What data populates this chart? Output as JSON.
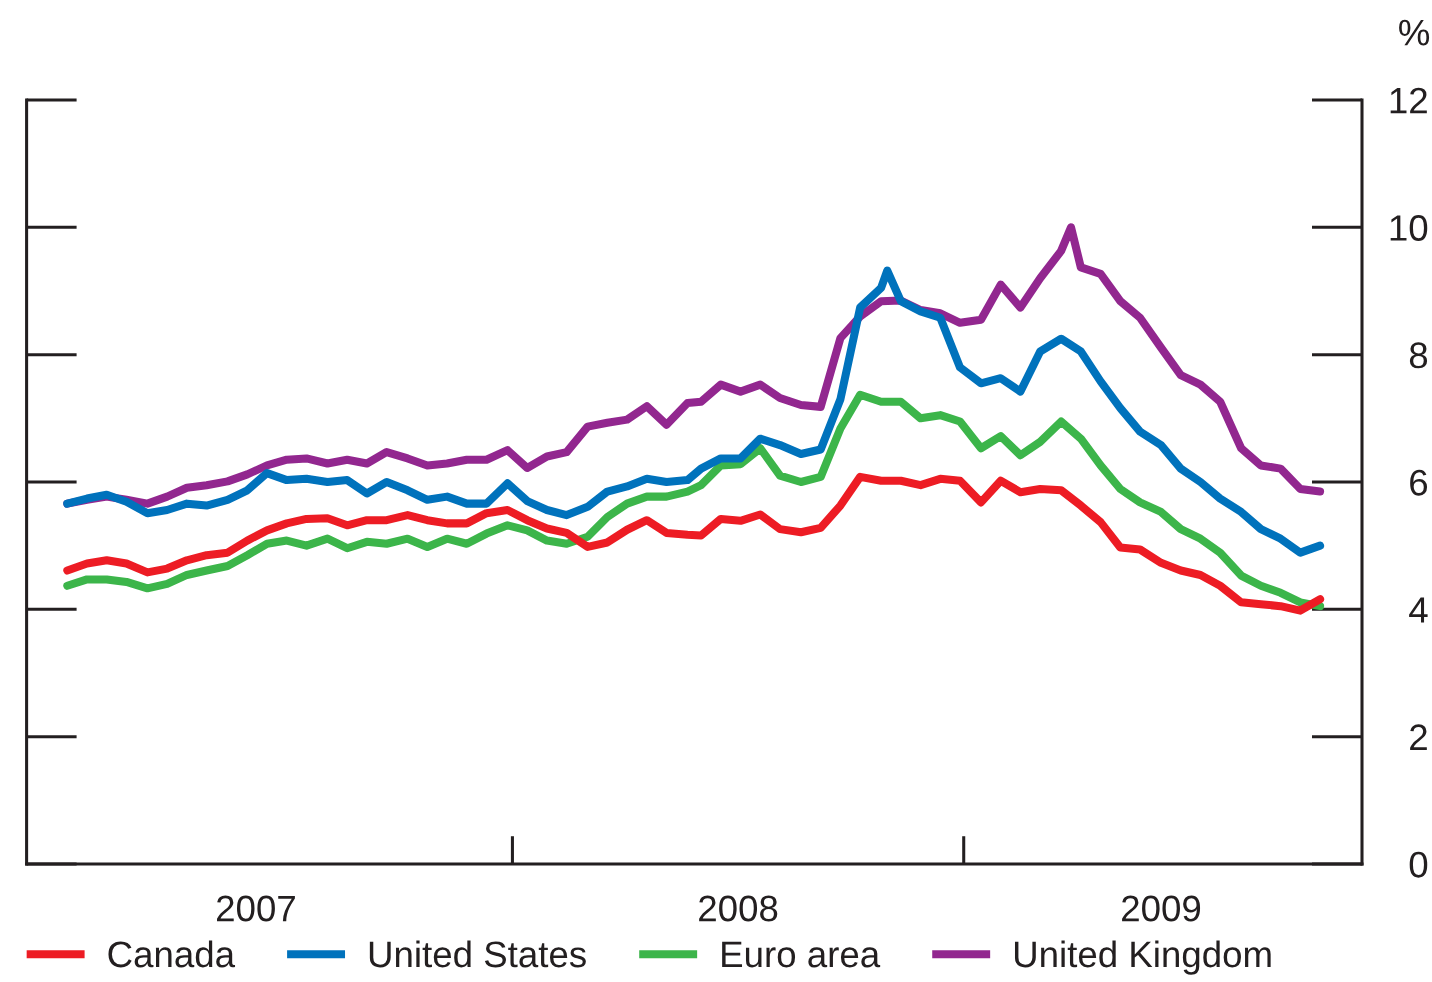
{
  "chart_data": {
    "type": "line",
    "x": [
      "2007-01-05",
      "2007-01-21",
      "2007-02-06",
      "2007-02-22",
      "2007-03-11",
      "2007-03-27",
      "2007-04-12",
      "2007-04-28",
      "2007-05-15",
      "2007-05-31",
      "2007-06-16",
      "2007-07-02",
      "2007-07-18",
      "2007-08-04",
      "2007-08-20",
      "2007-09-05",
      "2007-09-21",
      "2007-10-08",
      "2007-10-24",
      "2007-11-09",
      "2007-11-25",
      "2007-12-11",
      "2007-12-28",
      "2008-01-13",
      "2008-01-29",
      "2008-02-14",
      "2008-03-02",
      "2008-03-18",
      "2008-04-03",
      "2008-04-19",
      "2008-05-05",
      "2008-05-22",
      "2008-06-02",
      "2008-06-18",
      "2008-07-04",
      "2008-07-20",
      "2008-08-05",
      "2008-08-22",
      "2008-09-07",
      "2008-09-23",
      "2008-10-09",
      "2008-10-26",
      "2008-11-11",
      "2008-11-27",
      "2008-12-13",
      "2008-12-29",
      "2009-01-15",
      "2009-01-31",
      "2009-02-16",
      "2009-03-04",
      "2009-03-21",
      "2009-04-06",
      "2009-04-22",
      "2009-05-08",
      "2009-05-24",
      "2009-06-10",
      "2009-06-26",
      "2009-07-12",
      "2009-07-28",
      "2009-08-14",
      "2009-08-30",
      "2009-09-15",
      "2009-10-01",
      "2009-10-17"
    ],
    "series": [
      {
        "name": "Canada",
        "color": "#ed1c24",
        "values": [
          4.61,
          4.72,
          4.77,
          4.72,
          4.58,
          4.64,
          4.77,
          4.85,
          4.89,
          5.08,
          5.24,
          5.35,
          5.42,
          5.43,
          5.32,
          5.4,
          5.4,
          5.48,
          5.4,
          5.35,
          5.35,
          5.51,
          5.56,
          5.4,
          5.27,
          5.2,
          4.98,
          5.05,
          5.25,
          5.4,
          5.2,
          5.17,
          5.16,
          5.42,
          5.39,
          5.49,
          5.26,
          5.21,
          5.28,
          5.63,
          6.08,
          6.02,
          6.02,
          5.95,
          6.05,
          6.02,
          5.68,
          6.02,
          5.84,
          5.89,
          5.87,
          5.63,
          5.37,
          4.97,
          4.94,
          4.73,
          4.61,
          4.54,
          4.37,
          4.11,
          4.08,
          4.05,
          3.98,
          4.16
        ]
      },
      {
        "name": "United States",
        "color": "#0072bc",
        "x": [
          "2007-01-05",
          "2007-01-21",
          "2007-02-06",
          "2007-02-22",
          "2007-03-11",
          "2007-03-27",
          "2007-04-12",
          "2007-04-28",
          "2007-05-15",
          "2007-05-31",
          "2007-06-16",
          "2007-07-02",
          "2007-07-18",
          "2007-08-04",
          "2007-08-20",
          "2007-09-05",
          "2007-09-21",
          "2007-10-08",
          "2007-10-24",
          "2007-11-09",
          "2007-11-25",
          "2007-12-11",
          "2007-12-28",
          "2008-01-13",
          "2008-01-29",
          "2008-02-14",
          "2008-03-02",
          "2008-03-18",
          "2008-04-03",
          "2008-04-19",
          "2008-05-05",
          "2008-05-22",
          "2008-06-02",
          "2008-06-18",
          "2008-07-04",
          "2008-07-20",
          "2008-08-05",
          "2008-08-22",
          "2008-09-07",
          "2008-09-23",
          "2008-10-09",
          "2008-10-26",
          "2008-10-31",
          "2008-11-11",
          "2008-11-27",
          "2008-12-13",
          "2008-12-29",
          "2009-01-15",
          "2009-01-31",
          "2009-02-16",
          "2009-03-04",
          "2009-03-21",
          "2009-04-06",
          "2009-04-22",
          "2009-05-08",
          "2009-05-24",
          "2009-06-10",
          "2009-06-26",
          "2009-07-12",
          "2009-07-28",
          "2009-08-14",
          "2009-08-30",
          "2009-09-15",
          "2009-10-01",
          "2009-10-17"
        ],
        "values": [
          5.66,
          5.74,
          5.8,
          5.69,
          5.51,
          5.56,
          5.66,
          5.63,
          5.72,
          5.87,
          6.14,
          6.03,
          6.05,
          6.0,
          6.03,
          5.82,
          6.0,
          5.87,
          5.72,
          5.77,
          5.66,
          5.66,
          5.98,
          5.7,
          5.56,
          5.48,
          5.61,
          5.85,
          5.93,
          6.05,
          6.0,
          6.03,
          6.21,
          6.37,
          6.37,
          6.68,
          6.58,
          6.44,
          6.51,
          7.3,
          8.74,
          9.05,
          9.32,
          8.84,
          8.68,
          8.58,
          7.8,
          7.55,
          7.63,
          7.42,
          8.05,
          8.25,
          8.05,
          7.58,
          7.16,
          6.79,
          6.58,
          6.21,
          6.0,
          5.74,
          5.53,
          5.26,
          5.11,
          4.89,
          5.0
        ]
      },
      {
        "name": "Euro area",
        "color": "#3cb54a",
        "values": [
          4.37,
          4.47,
          4.47,
          4.43,
          4.33,
          4.4,
          4.54,
          4.61,
          4.68,
          4.85,
          5.03,
          5.08,
          5.0,
          5.11,
          4.96,
          5.06,
          5.03,
          5.11,
          4.98,
          5.11,
          5.03,
          5.19,
          5.32,
          5.24,
          5.08,
          5.03,
          5.14,
          5.45,
          5.66,
          5.77,
          5.77,
          5.85,
          5.95,
          6.26,
          6.28,
          6.53,
          6.1,
          6.0,
          6.08,
          6.84,
          7.37,
          7.26,
          7.26,
          7.0,
          7.05,
          6.95,
          6.53,
          6.72,
          6.42,
          6.63,
          6.95,
          6.68,
          6.26,
          5.89,
          5.68,
          5.53,
          5.26,
          5.11,
          4.89,
          4.53,
          4.37,
          4.26,
          4.11,
          4.05
        ]
      },
      {
        "name": "United Kingdom",
        "color": "#92278f",
        "x": [
          "2007-01-05",
          "2007-01-21",
          "2007-02-06",
          "2007-02-22",
          "2007-03-11",
          "2007-03-27",
          "2007-04-12",
          "2007-04-28",
          "2007-05-15",
          "2007-05-31",
          "2007-06-16",
          "2007-07-02",
          "2007-07-18",
          "2007-08-04",
          "2007-08-20",
          "2007-09-05",
          "2007-09-21",
          "2007-10-08",
          "2007-10-24",
          "2007-11-09",
          "2007-11-25",
          "2007-12-11",
          "2007-12-28",
          "2008-01-13",
          "2008-01-29",
          "2008-02-14",
          "2008-03-02",
          "2008-03-18",
          "2008-04-03",
          "2008-04-19",
          "2008-05-05",
          "2008-05-22",
          "2008-06-02",
          "2008-06-18",
          "2008-07-04",
          "2008-07-20",
          "2008-08-05",
          "2008-08-22",
          "2008-09-07",
          "2008-09-23",
          "2008-10-09",
          "2008-10-26",
          "2008-11-11",
          "2008-11-27",
          "2008-12-13",
          "2008-12-29",
          "2009-01-15",
          "2009-01-31",
          "2009-02-16",
          "2009-03-04",
          "2009-03-21",
          "2009-03-29",
          "2009-04-06",
          "2009-04-22",
          "2009-05-08",
          "2009-05-24",
          "2009-06-10",
          "2009-06-26",
          "2009-07-12",
          "2009-07-28",
          "2009-08-14",
          "2009-08-30",
          "2009-09-15",
          "2009-10-01",
          "2009-10-17"
        ],
        "values": [
          5.66,
          5.72,
          5.77,
          5.72,
          5.66,
          5.77,
          5.91,
          5.95,
          6.01,
          6.12,
          6.26,
          6.35,
          6.37,
          6.29,
          6.35,
          6.29,
          6.47,
          6.37,
          6.26,
          6.29,
          6.35,
          6.35,
          6.5,
          6.22,
          6.4,
          6.47,
          6.87,
          6.93,
          6.98,
          7.19,
          6.9,
          7.24,
          7.26,
          7.53,
          7.42,
          7.53,
          7.32,
          7.21,
          7.18,
          8.26,
          8.6,
          8.84,
          8.85,
          8.7,
          8.65,
          8.5,
          8.55,
          9.1,
          8.74,
          9.2,
          9.63,
          10.0,
          9.37,
          9.27,
          8.84,
          8.58,
          8.11,
          7.68,
          7.53,
          7.26,
          6.53,
          6.26,
          6.21,
          5.89,
          5.85
        ]
      }
    ],
    "ylabel": "%",
    "xlim": [
      "2006-12-03",
      "2009-11-20"
    ],
    "xticks": [
      {
        "value": "2007-06-07",
        "label": "2007"
      },
      {
        "value": "2008-01-01",
        "label": null
      },
      {
        "value": "2008-07-02",
        "label": "2008"
      },
      {
        "value": "2009-01-01",
        "label": null
      },
      {
        "value": "2009-06-10",
        "label": "2009"
      }
    ],
    "ylim": [
      0,
      12
    ],
    "yticks": [
      0,
      2,
      4,
      6,
      8,
      10,
      12
    ],
    "legend": "bottom",
    "line_style": "solid"
  }
}
